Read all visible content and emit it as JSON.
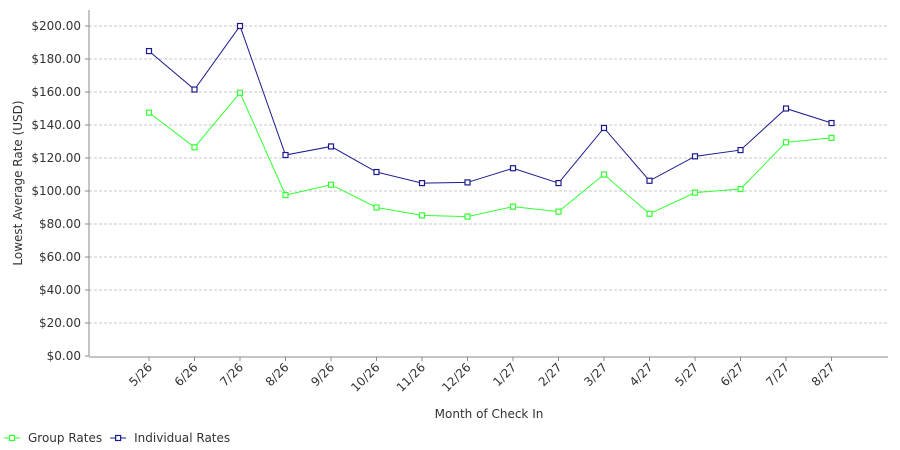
{
  "chart_data": {
    "type": "line",
    "title": "",
    "xlabel": "Month of Check In",
    "ylabel": "Lowest Average Rate (USD)",
    "categories": [
      "5/26",
      "6/26",
      "7/26",
      "8/26",
      "9/26",
      "10/26",
      "11/26",
      "12/26",
      "1/27",
      "2/27",
      "3/27",
      "4/27",
      "5/27",
      "6/27",
      "7/27",
      "8/27"
    ],
    "ylim": [
      0,
      200
    ],
    "yticks": [
      "$0.00",
      "$20.00",
      "$40.00",
      "$60.00",
      "$80.00",
      "$100.00",
      "$120.00",
      "$140.00",
      "$160.00",
      "$180.00",
      "$200.00"
    ],
    "grid": true,
    "legend_position": "bottom-left",
    "series": [
      {
        "name": "Group Rates",
        "color": "#33ff33",
        "values": [
          147.5,
          126.5,
          159.5,
          97.5,
          103.8,
          90.0,
          85.2,
          84.5,
          90.5,
          87.5,
          110.0,
          86.2,
          99.0,
          101.2,
          129.5,
          132.2
        ]
      },
      {
        "name": "Individual Rates",
        "color": "#1a1a8c",
        "values": [
          184.8,
          161.5,
          200.0,
          121.8,
          127.0,
          111.5,
          104.8,
          105.2,
          113.8,
          104.8,
          138.2,
          106.2,
          121.0,
          124.8,
          150.0,
          141.2
        ]
      }
    ]
  }
}
